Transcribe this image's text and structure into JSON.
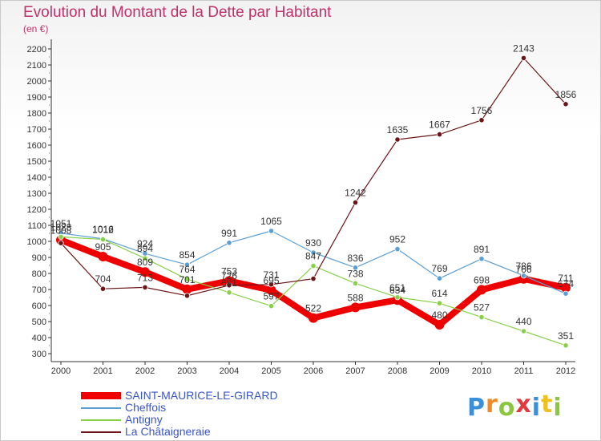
{
  "title": "Evolution du Montant de la Dette par Habitant",
  "subtitle": "(en €)",
  "logo": {
    "text": "Proxiti",
    "letters": [
      {
        "ch": "P",
        "color": "#3a8fd8"
      },
      {
        "ch": "r",
        "color": "#f08a24"
      },
      {
        "ch": "o",
        "color": "#8cc63f"
      },
      {
        "ch": "x",
        "color": "#e03a3e"
      },
      {
        "ch": "i",
        "color": "#3a8fd8"
      },
      {
        "ch": "t",
        "color": "#f0c020"
      },
      {
        "ch": "i",
        "color": "#8cc63f"
      }
    ]
  },
  "chart_data": {
    "type": "line",
    "title": "Evolution du Montant de la Dette par Habitant",
    "subtitle": "(en €)",
    "x": [
      "2000",
      "2001",
      "2002",
      "2003",
      "2004",
      "2005",
      "2006",
      "2007",
      "2008",
      "2009",
      "2010",
      "2011",
      "2012"
    ],
    "ylim": [
      300,
      2200
    ],
    "yticks": [
      300,
      400,
      500,
      600,
      700,
      800,
      900,
      1000,
      1100,
      1200,
      1300,
      1400,
      1500,
      1600,
      1700,
      1800,
      1900,
      2000,
      2100,
      2200
    ],
    "grid": false,
    "legend_position": "bottom-left",
    "series": [
      {
        "name": "SAINT-MAURICE-LE-GIRARD",
        "color": "#ee0000",
        "values": [
          1008,
          905,
          809,
          701,
          753,
          695,
          522,
          588,
          634,
          480,
          698,
          766,
          711
        ],
        "labels": [
          "1008",
          "905",
          "809",
          "701",
          "753",
          "695",
          "522",
          "588",
          "634",
          "480",
          "698",
          "766",
          "711"
        ]
      },
      {
        "name": "Cheffois",
        "color": "#5a9fd4",
        "values": [
          1051,
          1016,
          924,
          854,
          991,
          1065,
          930,
          836,
          952,
          769,
          891,
          786,
          674
        ],
        "labels": [
          "1051",
          "1016",
          "924",
          "854",
          "991",
          "1065",
          "930",
          "836",
          "952",
          "769",
          "891",
          "786",
          "674"
        ]
      },
      {
        "name": "Antigny",
        "color": "#88d04a",
        "values": [
          1028,
          1012,
          894,
          764,
          681,
          597,
          847,
          738,
          651,
          614,
          527,
          440,
          351
        ],
        "labels": [
          "1028",
          "1012",
          "894",
          "764",
          "681",
          "597",
          "847",
          "738",
          "651",
          "614",
          "527",
          "440",
          "351"
        ]
      },
      {
        "name": "La Châtaigneraie",
        "color": "#6b1518",
        "values": [
          989,
          704,
          713,
          661,
          726,
          731,
          767,
          1242,
          1635,
          1667,
          1756,
          2143,
          1856
        ],
        "labels": [
          "",
          "704",
          "713",
          "",
          "726",
          "731",
          "",
          "1242",
          "1635",
          "1667",
          "1756",
          "2143",
          "1856"
        ]
      }
    ]
  }
}
